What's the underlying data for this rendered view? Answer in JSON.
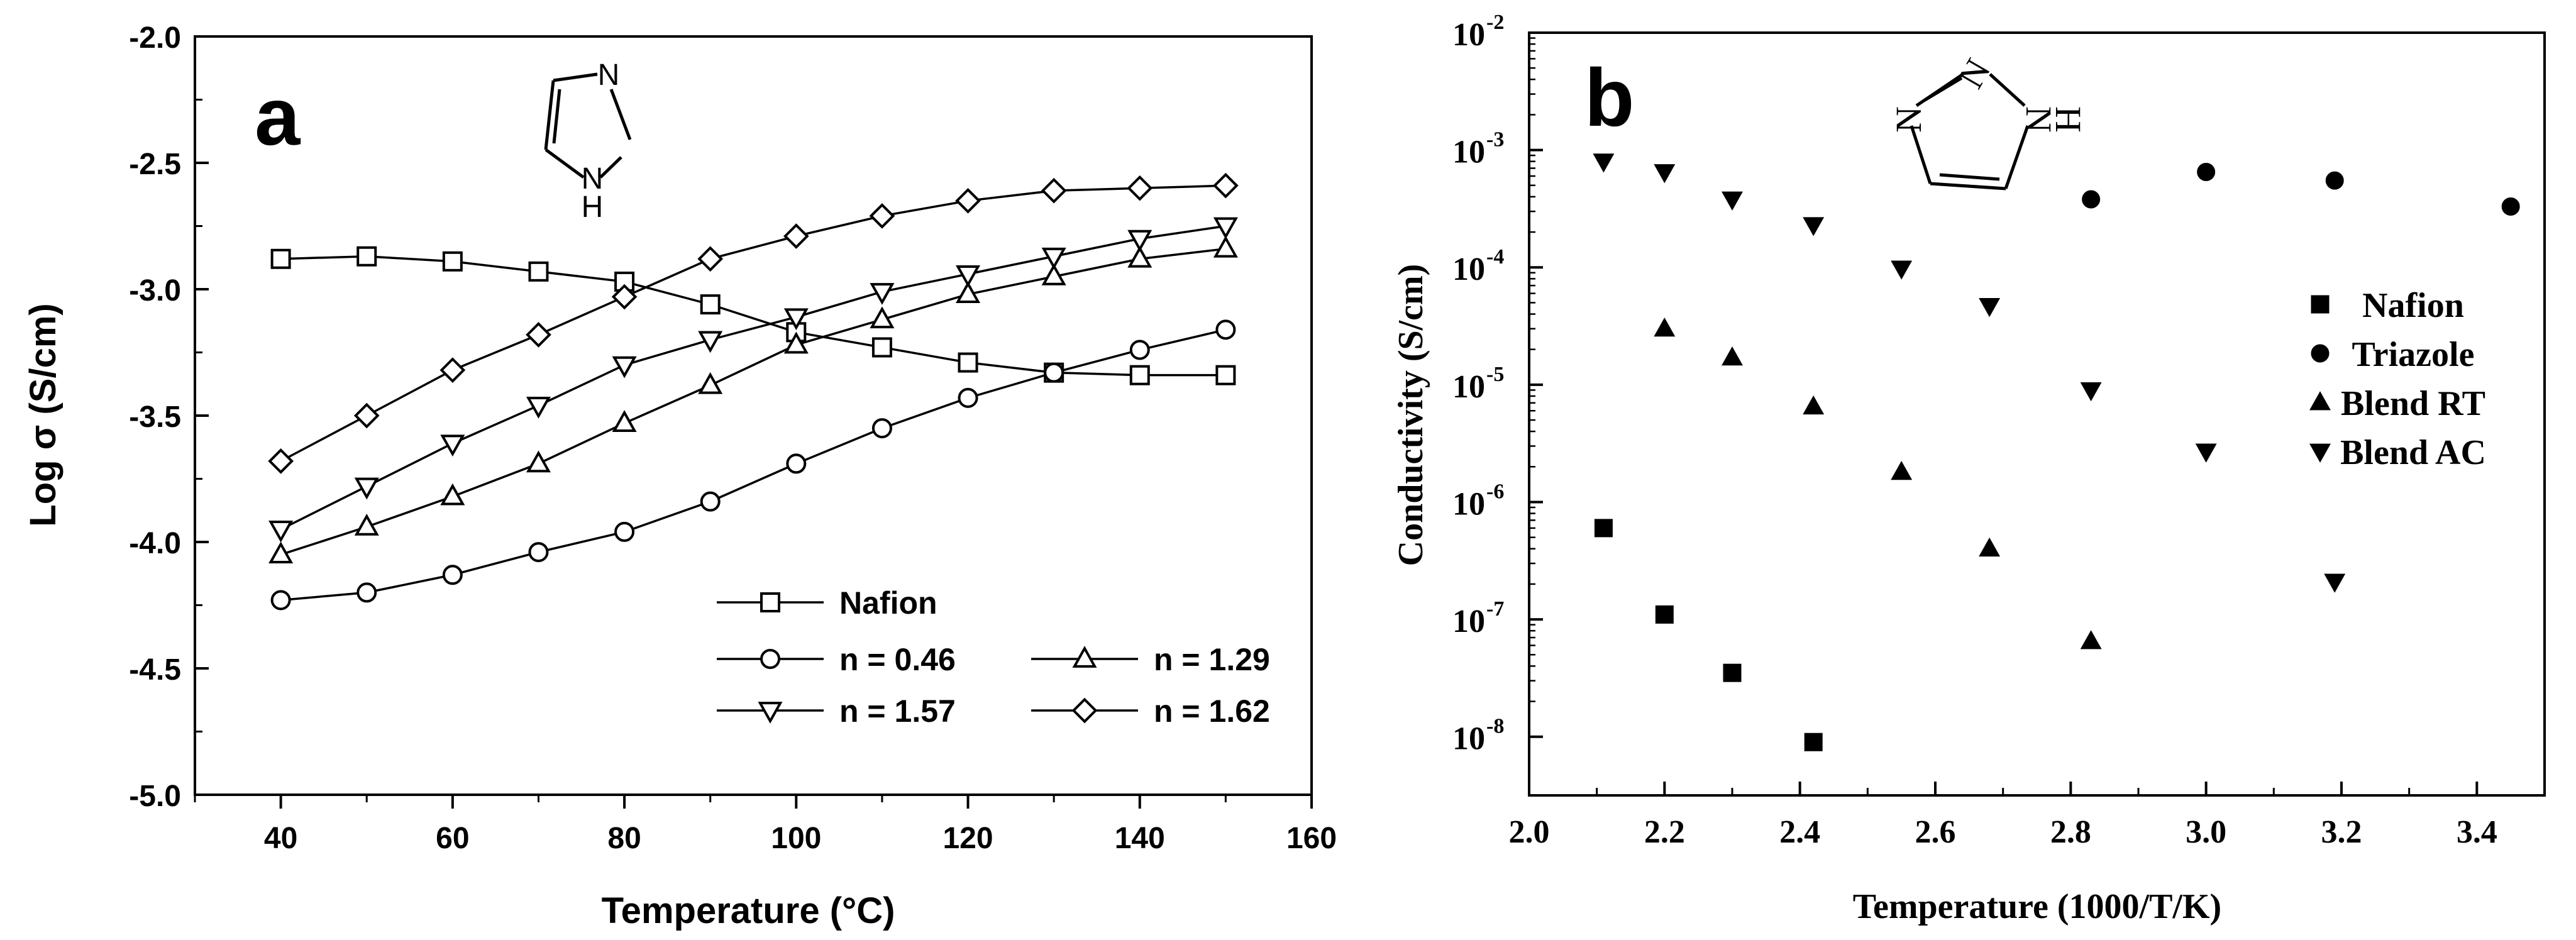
{
  "chart_data": [
    {
      "type": "line",
      "panel_label": "a",
      "xlabel": "Temperature (°C)",
      "ylabel": "Log σ (S/cm)",
      "xlim": [
        30,
        160
      ],
      "ylim": [
        -5.0,
        -2.0
      ],
      "x_ticks": [
        "40",
        "60",
        "80",
        "100",
        "120",
        "140",
        "160"
      ],
      "y_ticks": [
        "-2.0",
        "-2.5",
        "-3.0",
        "-3.5",
        "-4.0",
        "-4.5",
        "-5.0"
      ],
      "molecule": {
        "n_label": "N",
        "nh_label": "N",
        "h_label": "H"
      },
      "x": [
        40,
        50,
        60,
        70,
        80,
        90,
        100,
        110,
        120,
        130,
        140,
        150
      ],
      "series": [
        {
          "name": "Nafion",
          "marker": "square",
          "values": [
            -2.88,
            -2.87,
            -2.89,
            -2.93,
            -2.97,
            -3.06,
            -3.17,
            -3.23,
            -3.29,
            -3.33,
            -3.34,
            -3.34
          ]
        },
        {
          "name": "n = 0.46",
          "marker": "circle",
          "values": [
            -4.23,
            -4.2,
            -4.13,
            -4.04,
            -3.96,
            -3.84,
            -3.69,
            -3.55,
            -3.43,
            -3.33,
            -3.24,
            -3.16
          ]
        },
        {
          "name": "n = 1.29",
          "marker": "triangle-up",
          "values": [
            -4.05,
            -3.94,
            -3.82,
            -3.69,
            -3.53,
            -3.38,
            -3.22,
            -3.12,
            -3.02,
            -2.95,
            -2.88,
            -2.84
          ]
        },
        {
          "name": "n = 1.57",
          "marker": "triangle-down",
          "values": [
            -3.95,
            -3.78,
            -3.61,
            -3.46,
            -3.3,
            -3.2,
            -3.11,
            -3.01,
            -2.94,
            -2.87,
            -2.8,
            -2.75
          ]
        },
        {
          "name": "n = 1.62",
          "marker": "diamond",
          "values": [
            -3.68,
            -3.5,
            -3.32,
            -3.18,
            -3.03,
            -2.88,
            -2.79,
            -2.71,
            -2.65,
            -2.61,
            -2.6,
            -2.59
          ]
        }
      ]
    },
    {
      "type": "scatter",
      "panel_label": "b",
      "xlabel": "Temperature (1000/T/K)",
      "ylabel": "Conductivity (S/cm)",
      "xlim": [
        2.0,
        3.5
      ],
      "yscale": "log",
      "ylim_exponent": [
        -8.5,
        -2
      ],
      "x_ticks": [
        "2.0",
        "2.2",
        "2.4",
        "2.6",
        "2.8",
        "3.0",
        "3.2",
        "3.4"
      ],
      "y_ticks": [
        {
          "base": "10",
          "exp": "-2"
        },
        {
          "base": "10",
          "exp": "-3"
        },
        {
          "base": "10",
          "exp": "-4"
        },
        {
          "base": "10",
          "exp": "-5"
        },
        {
          "base": "10",
          "exp": "-6"
        },
        {
          "base": "10",
          "exp": "-7"
        },
        {
          "base": "10",
          "exp": "-8"
        }
      ],
      "molecule": {
        "n1": "N",
        "n2": "N",
        "nh": "N",
        "h": "H"
      },
      "series": [
        {
          "name": "Nafion",
          "marker": "square",
          "x": [
            2.11,
            2.2,
            2.3,
            2.42
          ],
          "y": [
            6e-07,
            1.1e-07,
            3.5e-08,
            9e-09
          ]
        },
        {
          "name": "Triazole",
          "marker": "circle",
          "x": [
            2.83,
            3.0,
            3.19,
            3.45
          ],
          "y": [
            0.00038,
            0.00065,
            0.00055,
            0.00033
          ]
        },
        {
          "name": "Blend RT",
          "marker": "triangle-up",
          "x": [
            2.2,
            2.3,
            2.42,
            2.55,
            2.68,
            2.83
          ],
          "y": [
            3e-05,
            1.7e-05,
            6.5e-06,
            1.8e-06,
            4e-07,
            6.5e-08
          ]
        },
        {
          "name": "Blend AC",
          "marker": "triangle-down",
          "x": [
            2.11,
            2.2,
            2.3,
            2.42,
            2.55,
            2.68,
            2.83,
            3.0,
            3.19
          ],
          "y": [
            0.0008,
            0.00065,
            0.00038,
            0.00023,
            9.8e-05,
            4.7e-05,
            9e-06,
            2.7e-06,
            2.1e-07
          ]
        }
      ]
    }
  ]
}
